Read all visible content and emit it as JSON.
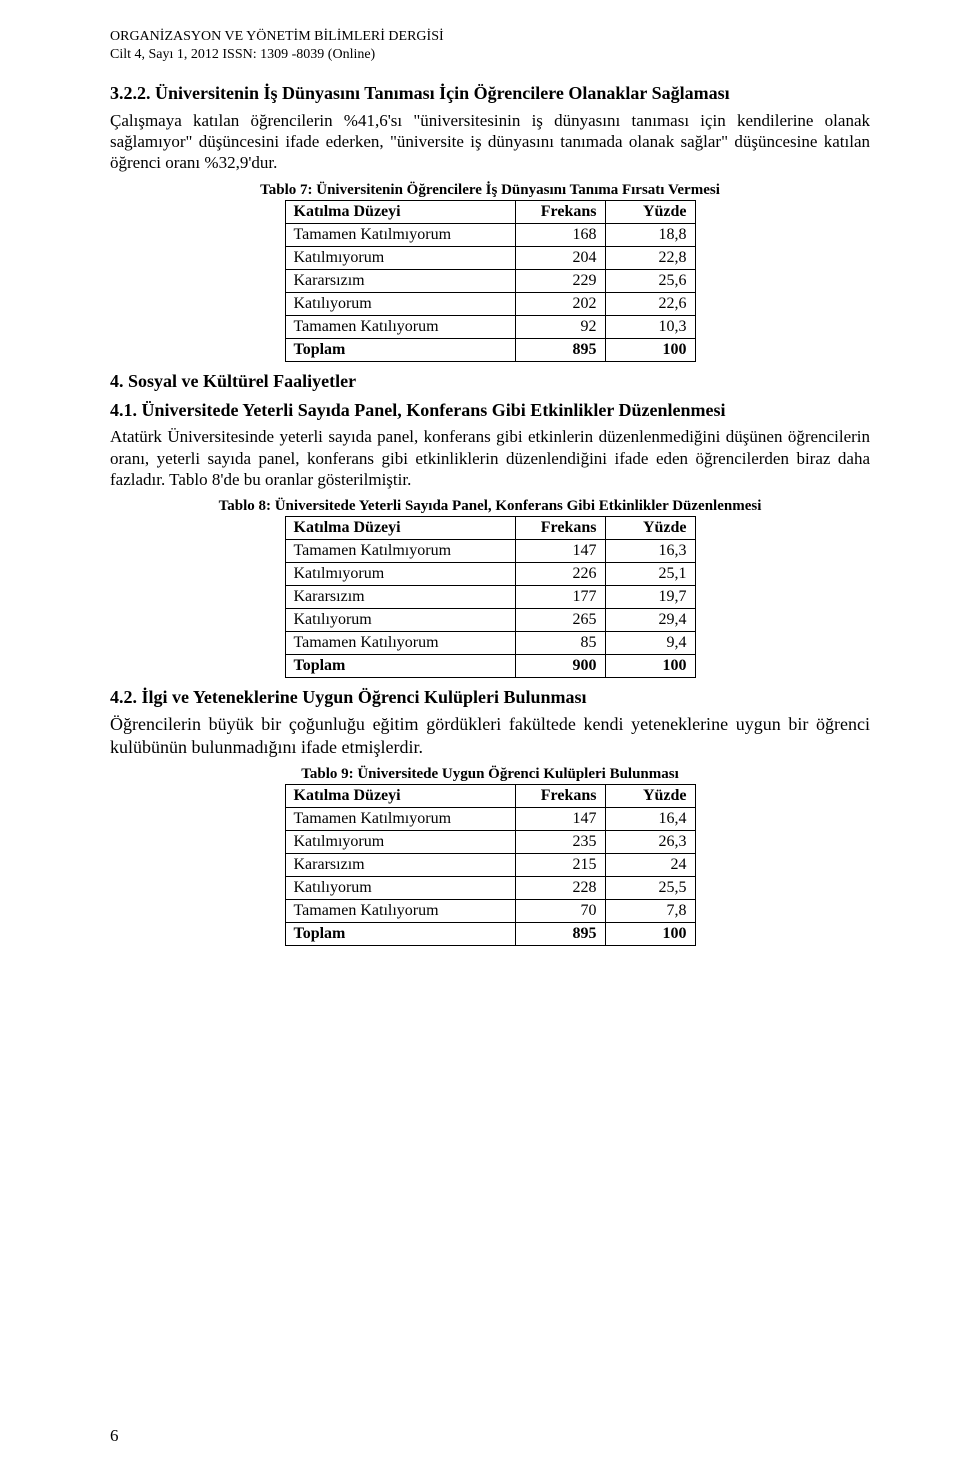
{
  "journal": {
    "title": "ORGANİZASYON VE YÖNETİM BİLİMLERİ DERGİSİ",
    "issue": "Cilt 4, Sayı 1, 2012   ISSN: 1309 -8039  (Online)"
  },
  "sec322": {
    "heading": "3.2.2. Üniversitenin İş Dünyasını Tanıması İçin Öğrencilere Olanaklar Sağlaması",
    "para": "Çalışmaya katılan öğrencilerin %41,6'sı \"üniversitesinin iş dünyasını tanıması için kendilerine olanak sağlamıyor\" düşüncesini ifade ederken, \"üniversite iş dünyasını tanımada olanak sağlar\" düşüncesine katılan öğrenci oranı %32,9'dur."
  },
  "table7": {
    "caption": "Tablo 7: Üniversitenin Öğrencilere İş Dünyasını Tanıma Fırsatı Vermesi",
    "header": {
      "label": "Katılma Düzeyi",
      "freq": "Frekans",
      "pct": "Yüzde"
    },
    "rows": [
      {
        "label": "Tamamen Katılmıyorum",
        "freq": "168",
        "pct": "18,8"
      },
      {
        "label": "Katılmıyorum",
        "freq": "204",
        "pct": "22,8"
      },
      {
        "label": "Kararsızım",
        "freq": "229",
        "pct": "25,6"
      },
      {
        "label": "Katılıyorum",
        "freq": "202",
        "pct": "22,6"
      },
      {
        "label": "Tamamen Katılıyorum",
        "freq": "92",
        "pct": "10,3"
      }
    ],
    "total": {
      "label": "Toplam",
      "freq": "895",
      "pct": "100"
    }
  },
  "sec4": {
    "heading": "4.  Sosyal ve Kültürel Faaliyetler"
  },
  "sec41": {
    "heading": "4.1. Üniversitede Yeterli Sayıda Panel, Konferans Gibi Etkinlikler Düzenlenmesi",
    "para": "Atatürk Üniversitesinde yeterli sayıda panel, konferans gibi etkinlerin düzenlenmediğini düşünen öğrencilerin oranı, yeterli sayıda panel, konferans gibi etkinliklerin düzenlendiğini ifade eden öğrencilerden biraz daha fazladır. Tablo 8'de bu oranlar gösterilmiştir."
  },
  "table8": {
    "caption": "Tablo 8: Üniversitede Yeterli Sayıda Panel, Konferans Gibi Etkinlikler Düzenlenmesi",
    "header": {
      "label": "Katılma Düzeyi",
      "freq": "Frekans",
      "pct": "Yüzde"
    },
    "rows": [
      {
        "label": "Tamamen Katılmıyorum",
        "freq": "147",
        "pct": "16,3"
      },
      {
        "label": "Katılmıyorum",
        "freq": "226",
        "pct": "25,1"
      },
      {
        "label": "Kararsızım",
        "freq": "177",
        "pct": "19,7"
      },
      {
        "label": "Katılıyorum",
        "freq": "265",
        "pct": "29,4"
      },
      {
        "label": "Tamamen Katılıyorum",
        "freq": "85",
        "pct": "9,4"
      }
    ],
    "total": {
      "label": "Toplam",
      "freq": "900",
      "pct": "100"
    }
  },
  "sec42": {
    "heading": "4.2. İlgi ve Yeteneklerine Uygun Öğrenci Kulüpleri Bulunması",
    "para": "Öğrencilerin büyük bir çoğunluğu eğitim gördükleri fakültede kendi yeteneklerine uygun bir öğrenci kulübünün bulunmadığını ifade etmişlerdir."
  },
  "table9": {
    "caption": "Tablo 9: Üniversitede Uygun Öğrenci Kulüpleri Bulunması",
    "header": {
      "label": "Katılma Düzeyi",
      "freq": "Frekans",
      "pct": "Yüzde"
    },
    "rows": [
      {
        "label": "Tamamen Katılmıyorum",
        "freq": "147",
        "pct": "16,4"
      },
      {
        "label": "Katılmıyorum",
        "freq": "235",
        "pct": "26,3"
      },
      {
        "label": "Kararsızım",
        "freq": "215",
        "pct": "24"
      },
      {
        "label": "Katılıyorum",
        "freq": "228",
        "pct": "25,5"
      },
      {
        "label": "Tamamen Katılıyorum",
        "freq": "70",
        "pct": "7,8"
      }
    ],
    "total": {
      "label": "Toplam",
      "freq": "895",
      "pct": "100"
    }
  },
  "page_number": "6"
}
